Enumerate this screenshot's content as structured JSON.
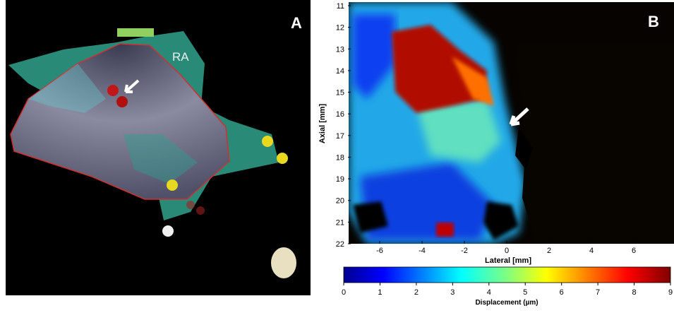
{
  "panel_a": {
    "label": "A",
    "annotation": "RA"
  },
  "panel_b": {
    "label": "B",
    "x_label": "Lateral [mm]",
    "y_label": "Axial [mm]",
    "xlim": [
      -7.5,
      7.9
    ],
    "xticks": [
      -6,
      -4,
      -2,
      0,
      2,
      4,
      6
    ],
    "ylim": [
      11,
      22
    ],
    "yticks": [
      11,
      12,
      13,
      14,
      15,
      16,
      17,
      18,
      19,
      20,
      21,
      22
    ],
    "colorbar": {
      "label": "Displacement (µm)",
      "lim": [
        0,
        9
      ],
      "ticks": [
        0,
        1,
        2,
        3,
        4,
        5,
        6,
        7,
        8,
        9
      ]
    }
  }
}
